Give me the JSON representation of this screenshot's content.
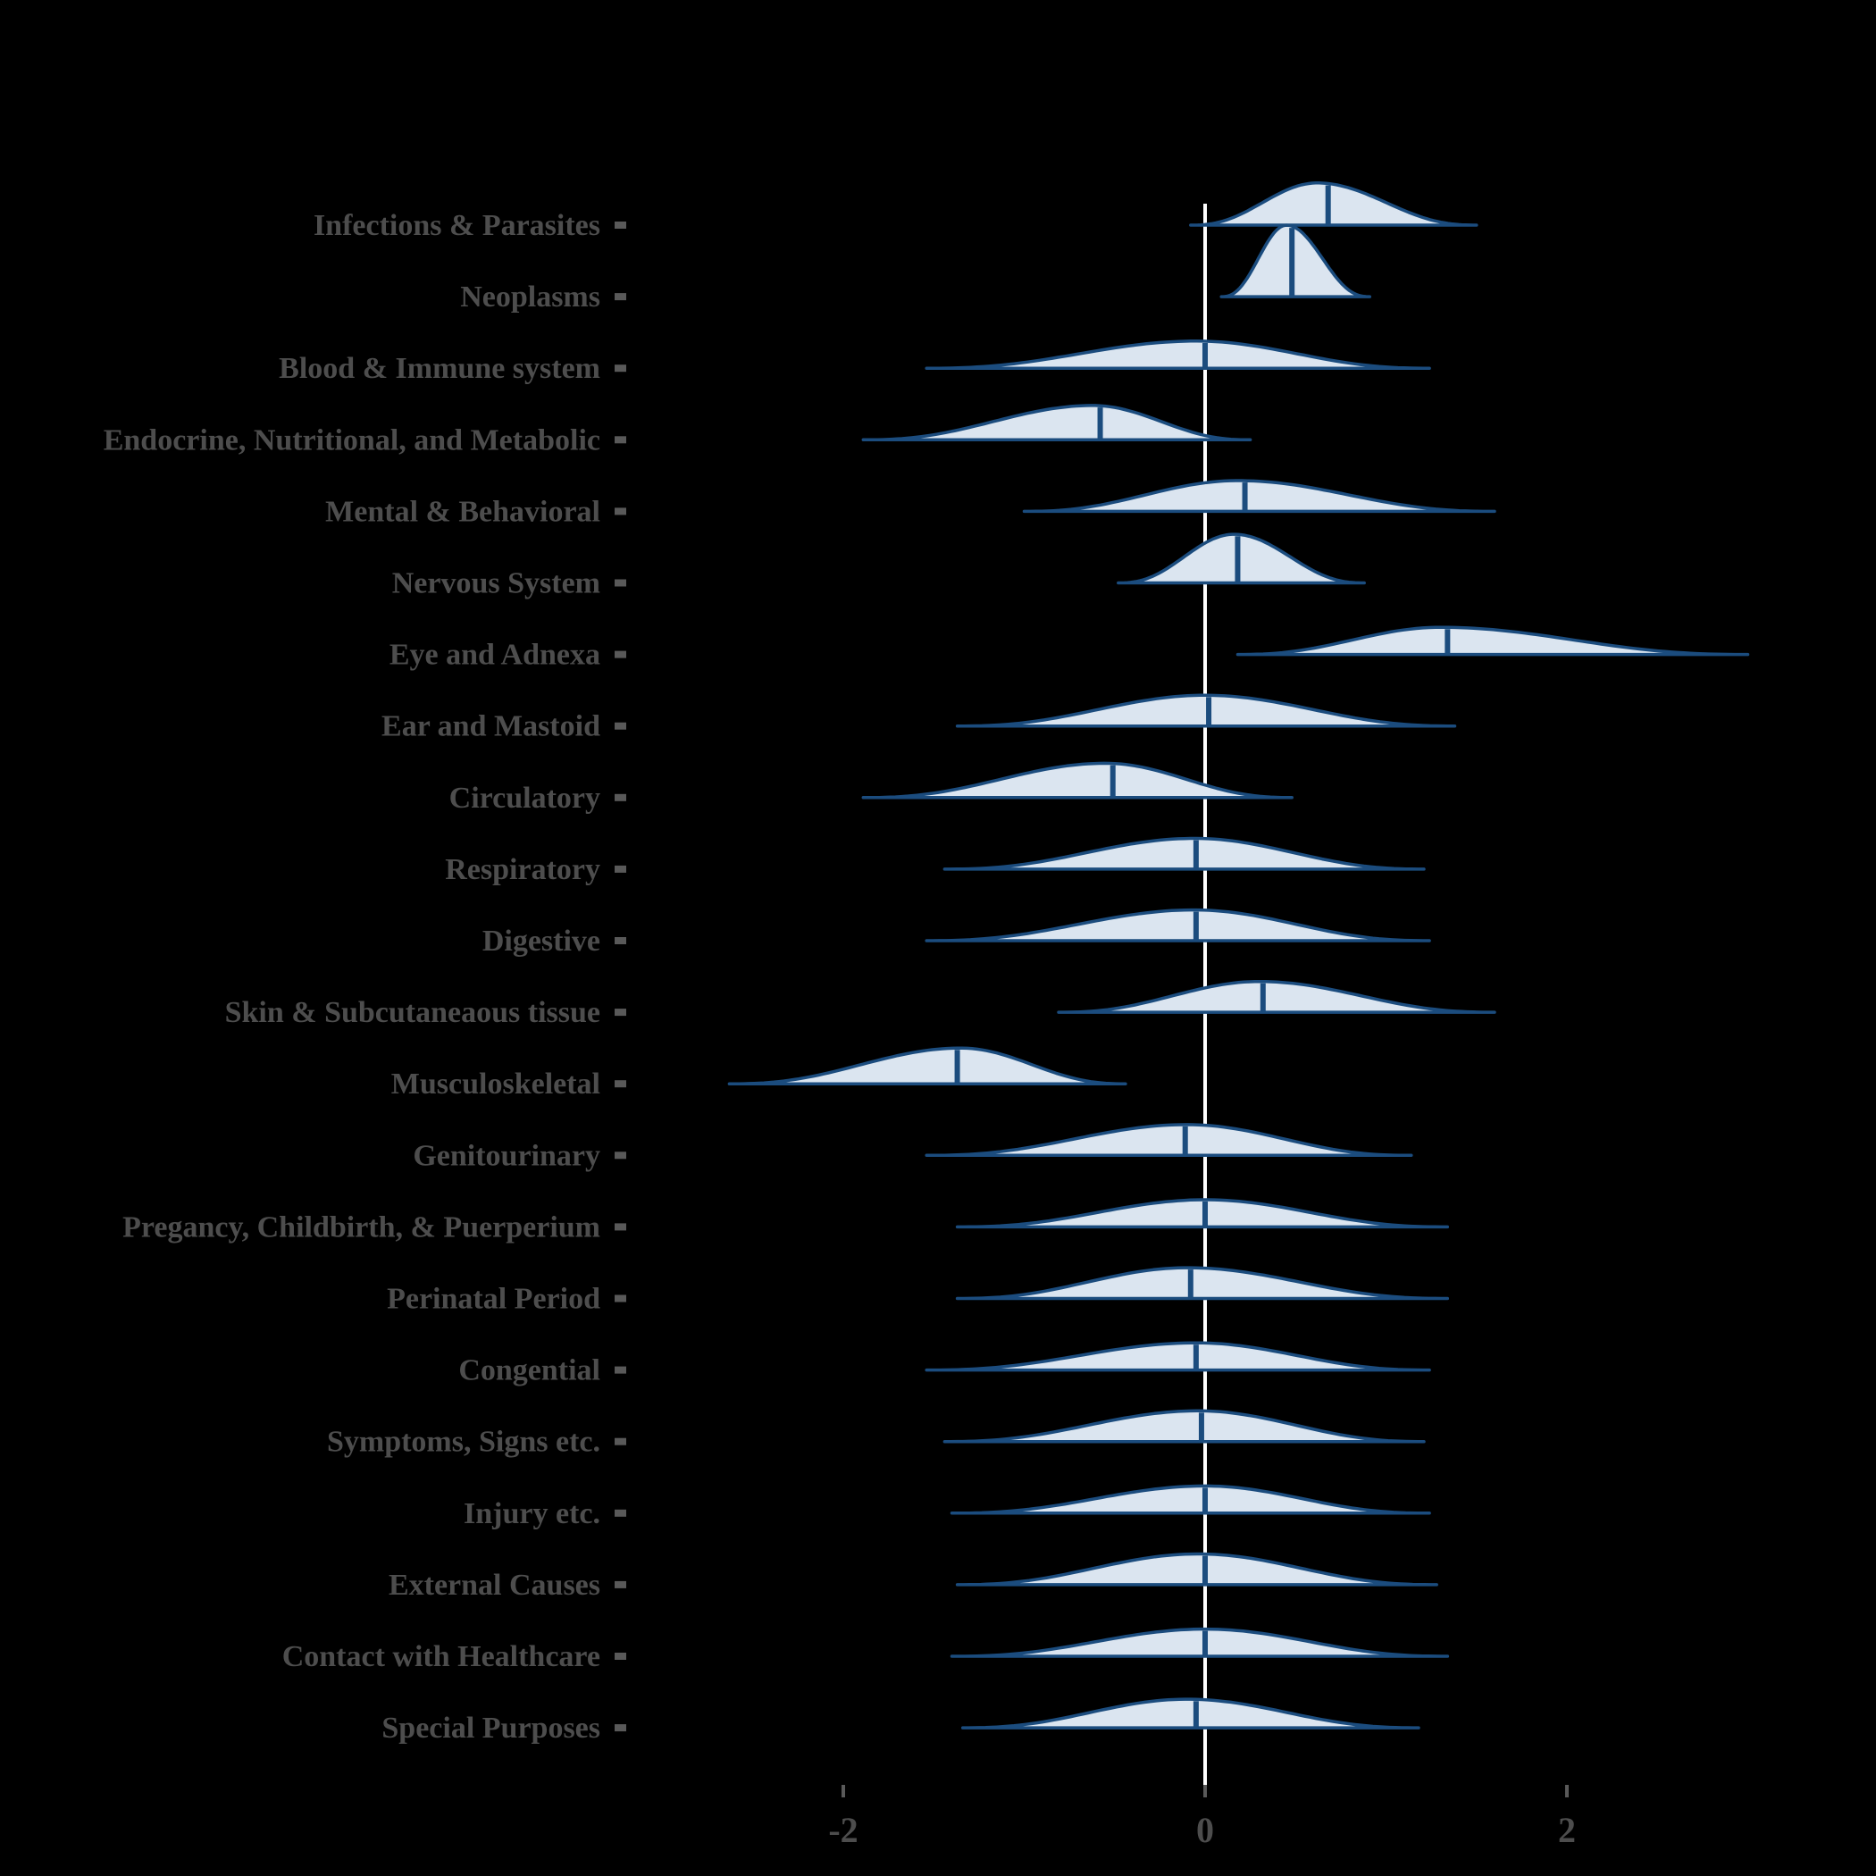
{
  "figure": {
    "background": "#000000"
  },
  "chart_data": {
    "type": "violin",
    "title": "",
    "xlabel": "",
    "ylabel": "",
    "orientation": "horizontal-ridgeline",
    "xlim": [
      -3.3,
      3.7
    ],
    "x_ticks": [
      -2,
      0,
      2
    ],
    "x_tick_labels": [
      "-2",
      "0",
      "2"
    ],
    "zero_reference_line": 0,
    "grid": false,
    "legend": "none",
    "colors": {
      "violin_fill": "#dbe5f0",
      "violin_stroke": "#1b4c7e",
      "median_line": "#1b4c7e",
      "zero_line": "#ffffff",
      "label_text": "#4d4d4d",
      "tick_mark": "#595959",
      "tick_text": "#4d4d4d"
    },
    "categories": [
      "Infections & Parasites",
      "Neoplasms",
      "Blood & Immune system",
      "Endocrine, Nutritional, and Metabolic",
      "Mental & Behavioral",
      "Nervous System",
      "Eye and Adnexa",
      "Ear and Mastoid",
      "Circulatory",
      "Respiratory",
      "Digestive",
      "Skin & Subcutaneaous tissue",
      "Musculoskeletal",
      "Genitourinary",
      "Pregancy, Childbirth, & Puerperium",
      "Perinatal Period",
      "Congential",
      "Symptoms, Signs etc.",
      "Injury etc.",
      "External Causes",
      "Contact with Healthcare",
      "Special Purposes"
    ],
    "series": [
      {
        "label": "Infections & Parasites",
        "min": -0.08,
        "peak": 0.62,
        "max": 1.5,
        "median": 0.68,
        "density_height": 0.59
      },
      {
        "label": "Neoplasms",
        "min": 0.09,
        "peak": 0.45,
        "max": 0.91,
        "median": 0.48,
        "density_height": 1.0
      },
      {
        "label": "Blood & Immune system",
        "min": -1.54,
        "peak": -0.05,
        "max": 1.24,
        "median": 0.0,
        "density_height": 0.38
      },
      {
        "label": "Endocrine, Nutritional, and Metabolic",
        "min": -1.89,
        "peak": -0.62,
        "max": 0.25,
        "median": -0.58,
        "density_height": 0.48
      },
      {
        "label": "Mental & Behavioral",
        "min": -1.0,
        "peak": 0.18,
        "max": 1.6,
        "median": 0.22,
        "density_height": 0.43
      },
      {
        "label": "Nervous System",
        "min": -0.48,
        "peak": 0.16,
        "max": 0.88,
        "median": 0.18,
        "density_height": 0.68
      },
      {
        "label": "Eye and Adnexa",
        "min": 0.18,
        "peak": 1.3,
        "max": 3.0,
        "median": 1.34,
        "density_height": 0.38
      },
      {
        "label": "Ear and Mastoid",
        "min": -1.37,
        "peak": 0.0,
        "max": 1.38,
        "median": 0.02,
        "density_height": 0.43
      },
      {
        "label": "Circulatory",
        "min": -1.89,
        "peak": -0.55,
        "max": 0.48,
        "median": -0.51,
        "density_height": 0.48
      },
      {
        "label": "Respiratory",
        "min": -1.44,
        "peak": -0.06,
        "max": 1.21,
        "median": -0.05,
        "density_height": 0.43
      },
      {
        "label": "Digestive",
        "min": -1.54,
        "peak": -0.06,
        "max": 1.24,
        "median": -0.05,
        "density_height": 0.43
      },
      {
        "label": "Skin & Subcutaneaous tissue",
        "min": -0.81,
        "peak": 0.3,
        "max": 1.6,
        "median": 0.32,
        "density_height": 0.43
      },
      {
        "label": "Musculoskeletal",
        "min": -2.63,
        "peak": -1.35,
        "max": -0.44,
        "median": -1.37,
        "density_height": 0.5
      },
      {
        "label": "Genitourinary",
        "min": -1.54,
        "peak": -0.1,
        "max": 1.14,
        "median": -0.11,
        "density_height": 0.43
      },
      {
        "label": "Pregancy, Childbirth, & Puerperium",
        "min": -1.37,
        "peak": 0.0,
        "max": 1.34,
        "median": 0.0,
        "density_height": 0.38
      },
      {
        "label": "Perinatal Period",
        "min": -1.37,
        "peak": -0.1,
        "max": 1.34,
        "median": -0.08,
        "density_height": 0.43
      },
      {
        "label": "Congential",
        "min": -1.54,
        "peak": -0.05,
        "max": 1.24,
        "median": -0.05,
        "density_height": 0.38
      },
      {
        "label": "Symptoms, Signs etc.",
        "min": -1.44,
        "peak": -0.04,
        "max": 1.21,
        "median": -0.02,
        "density_height": 0.43
      },
      {
        "label": "Injury etc.",
        "min": -1.4,
        "peak": 0.0,
        "max": 1.24,
        "median": 0.0,
        "density_height": 0.38
      },
      {
        "label": "External Causes",
        "min": -1.37,
        "peak": -0.04,
        "max": 1.28,
        "median": 0.0,
        "density_height": 0.43
      },
      {
        "label": "Contact with Healthcare",
        "min": -1.4,
        "peak": 0.0,
        "max": 1.34,
        "median": 0.0,
        "density_height": 0.38
      },
      {
        "label": "Special Purposes",
        "min": -1.34,
        "peak": -0.1,
        "max": 1.18,
        "median": -0.05,
        "density_height": 0.4
      }
    ]
  }
}
